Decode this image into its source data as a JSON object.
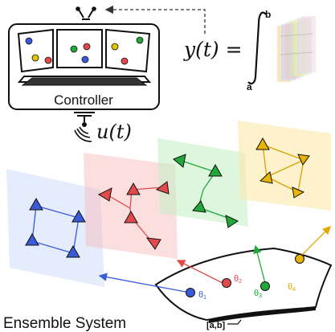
{
  "controller": {
    "label": "Controller",
    "input_signal": "u(t)"
  },
  "integral": {
    "output": "y(t) =",
    "upper_limit": "b",
    "lower_limit": "a"
  },
  "ensemble": {
    "title": "Ensemble System",
    "parameter_interval": "[a,b]",
    "parameters": [
      {
        "symbol": "θ",
        "subscript": "1",
        "color": "#3a5bd9"
      },
      {
        "symbol": "θ",
        "subscript": "2",
        "color": "#e04a4a"
      },
      {
        "symbol": "θ",
        "subscript": "3",
        "color": "#22a83a"
      },
      {
        "symbol": "θ",
        "subscript": "4",
        "color": "#e0a800"
      }
    ]
  },
  "colors": {
    "blue": "#3a5bd9",
    "red": "#e04a4a",
    "green": "#22a83a",
    "yellow": "#e0a800",
    "outline": "#111111"
  }
}
